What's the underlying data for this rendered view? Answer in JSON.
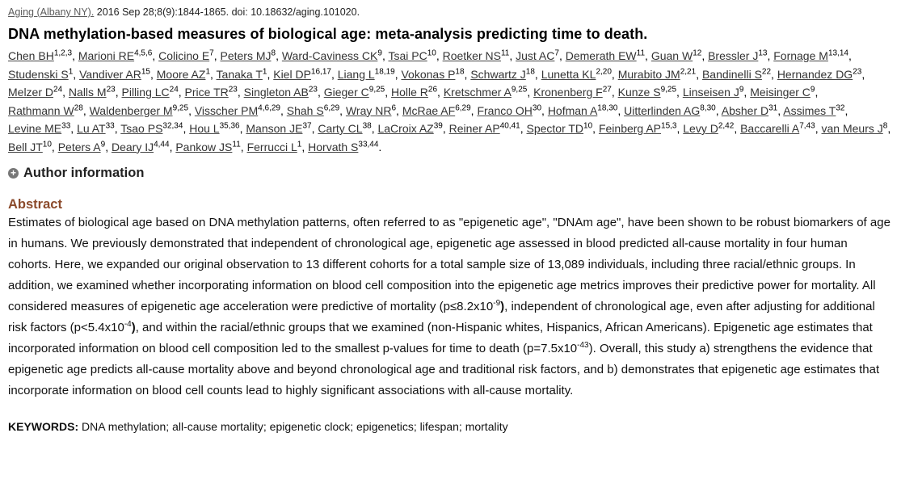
{
  "citation": {
    "journal": "Aging (Albany NY).",
    "details": " 2016 Sep 28;8(9):1844-1865. doi: 10.18632/aging.101020."
  },
  "title": "DNA methylation-based measures of biological age: meta-analysis predicting time to death.",
  "authors": [
    {
      "name": "Chen BH",
      "aff": "1,2,3"
    },
    {
      "name": "Marioni RE",
      "aff": "4,5,6"
    },
    {
      "name": "Colicino E",
      "aff": "7"
    },
    {
      "name": "Peters MJ",
      "aff": "8"
    },
    {
      "name": "Ward-Caviness CK",
      "aff": "9"
    },
    {
      "name": "Tsai PC",
      "aff": "10"
    },
    {
      "name": "Roetker NS",
      "aff": "11"
    },
    {
      "name": "Just AC",
      "aff": "7"
    },
    {
      "name": "Demerath EW",
      "aff": "11"
    },
    {
      "name": "Guan W",
      "aff": "12"
    },
    {
      "name": "Bressler J",
      "aff": "13"
    },
    {
      "name": "Fornage M",
      "aff": "13,14"
    },
    {
      "name": "Studenski S",
      "aff": "1"
    },
    {
      "name": "Vandiver AR",
      "aff": "15"
    },
    {
      "name": "Moore AZ",
      "aff": "1"
    },
    {
      "name": "Tanaka T",
      "aff": "1"
    },
    {
      "name": "Kiel DP",
      "aff": "16,17"
    },
    {
      "name": "Liang L",
      "aff": "18,19"
    },
    {
      "name": "Vokonas P",
      "aff": "18"
    },
    {
      "name": "Schwartz J",
      "aff": "18"
    },
    {
      "name": "Lunetta KL",
      "aff": "2,20"
    },
    {
      "name": "Murabito JM",
      "aff": "2,21"
    },
    {
      "name": "Bandinelli S",
      "aff": "22"
    },
    {
      "name": "Hernandez DG",
      "aff": "23"
    },
    {
      "name": "Melzer D",
      "aff": "24"
    },
    {
      "name": "Nalls M",
      "aff": "23"
    },
    {
      "name": "Pilling LC",
      "aff": "24"
    },
    {
      "name": "Price TR",
      "aff": "23"
    },
    {
      "name": "Singleton AB",
      "aff": "23"
    },
    {
      "name": "Gieger C",
      "aff": "9,25"
    },
    {
      "name": "Holle R",
      "aff": "26"
    },
    {
      "name": "Kretschmer A",
      "aff": "9,25"
    },
    {
      "name": "Kronenberg F",
      "aff": "27"
    },
    {
      "name": "Kunze S",
      "aff": "9,25"
    },
    {
      "name": "Linseisen J",
      "aff": "9"
    },
    {
      "name": "Meisinger C",
      "aff": "9"
    },
    {
      "name": "Rathmann W",
      "aff": "28"
    },
    {
      "name": "Waldenberger M",
      "aff": "9,25"
    },
    {
      "name": "Visscher PM",
      "aff": "4,6,29"
    },
    {
      "name": "Shah S",
      "aff": "6,29"
    },
    {
      "name": "Wray NR",
      "aff": "6"
    },
    {
      "name": "McRae AF",
      "aff": "6,29"
    },
    {
      "name": "Franco OH",
      "aff": "30"
    },
    {
      "name": "Hofman A",
      "aff": "18,30"
    },
    {
      "name": "Uitterlinden AG",
      "aff": "8,30"
    },
    {
      "name": "Absher D",
      "aff": "31"
    },
    {
      "name": "Assimes T",
      "aff": "32"
    },
    {
      "name": "Levine ME",
      "aff": "33"
    },
    {
      "name": "Lu AT",
      "aff": "33"
    },
    {
      "name": "Tsao PS",
      "aff": "32,34"
    },
    {
      "name": "Hou L",
      "aff": "35,36"
    },
    {
      "name": "Manson JE",
      "aff": "37"
    },
    {
      "name": "Carty CL",
      "aff": "38"
    },
    {
      "name": "LaCroix AZ",
      "aff": "39"
    },
    {
      "name": "Reiner AP",
      "aff": "40,41"
    },
    {
      "name": "Spector TD",
      "aff": "10"
    },
    {
      "name": "Feinberg AP",
      "aff": "15,3"
    },
    {
      "name": "Levy D",
      "aff": "2,42"
    },
    {
      "name": "Baccarelli A",
      "aff": "7,43"
    },
    {
      "name": "van Meurs J",
      "aff": "8"
    },
    {
      "name": "Bell JT",
      "aff": "10"
    },
    {
      "name": "Peters A",
      "aff": "9"
    },
    {
      "name": "Deary IJ",
      "aff": "4,44"
    },
    {
      "name": "Pankow JS",
      "aff": "11"
    },
    {
      "name": "Ferrucci L",
      "aff": "1"
    },
    {
      "name": "Horvath S",
      "aff": "33,44"
    }
  ],
  "author_info_label": "Author information",
  "abstract": {
    "heading": "Abstract",
    "p1": "Estimates of biological age based on DNA methylation patterns, often referred to as \"epigenetic age\", \"DNAm age\", have been shown to be robust biomarkers of age in humans. We previously demonstrated that independent of chronological age, epigenetic age assessed in blood predicted all-cause mortality in four human cohorts. Here, we expanded our original observation to 13 different cohorts for a total sample size of 13,089 individuals, including three racial/ethnic groups. In addition, we examined whether incorporating information on blood cell composition into the epigenetic age metrics improves their predictive power for mortality. All considered measures of epigenetic age acceleration were predictive of mortality (p≤8.2x10",
    "sup1": "-9",
    "p2": "), independent of chronological age, even after adjusting for additional risk factors (p<5.4x10",
    "sup2": "-4",
    "p3": "), and within the racial/ethnic groups that we examined (non-Hispanic whites, Hispanics, African Americans). Epigenetic age estimates that incorporated information on blood cell composition led to the smallest p-values for time to death (p=7.5x10",
    "sup3": "-43",
    "p4": "). Overall, this study a) strengthens the evidence that epigenetic age predicts all-cause mortality above and beyond chronological age and traditional risk factors, and b) demonstrates that epigenetic age estimates that incorporate information on blood cell counts lead to highly significant associations with all-cause mortality."
  },
  "keywords": {
    "label": "KEYWORDS:",
    "text": " DNA methylation; all-cause mortality; epigenetic clock; epigenetics; lifespan; mortality"
  },
  "colors": {
    "abstract_heading": "#8b4a2b",
    "link": "#333333"
  }
}
